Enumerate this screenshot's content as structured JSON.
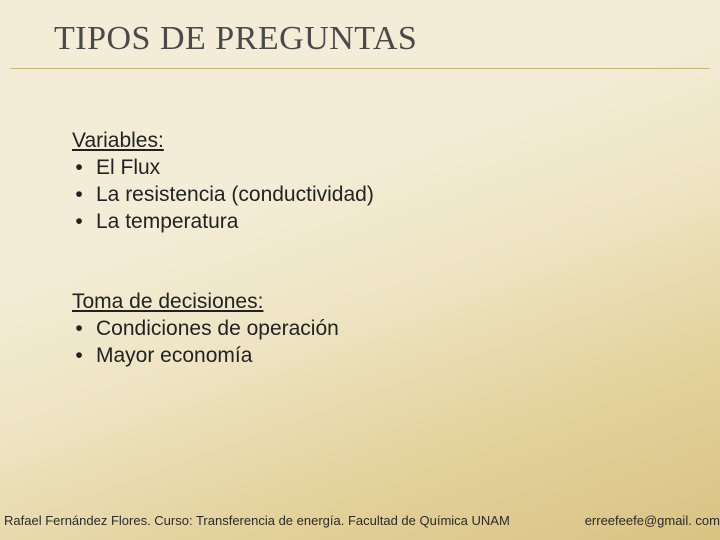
{
  "slide": {
    "title": "TIPOS DE PREGUNTAS",
    "background_gradient": [
      "#f3edd7",
      "#eee4c2",
      "#e3d19a",
      "#d9c383"
    ],
    "underline_color": "#c9b67a",
    "title_color": "#4a4a4a",
    "text_color": "#222222",
    "sections": [
      {
        "heading": "Variables:",
        "items": [
          "El Flux",
          "La resistencia (conductividad)",
          "La temperatura"
        ]
      },
      {
        "heading": "Toma de decisiones:",
        "items": [
          "Condiciones de operación",
          "Mayor economía"
        ]
      }
    ],
    "footer": {
      "left": "Rafael Fernández Flores. Curso: Transferencia de energía. Facultad de Química UNAM",
      "right": "erreefeefe@gmail. com"
    }
  }
}
